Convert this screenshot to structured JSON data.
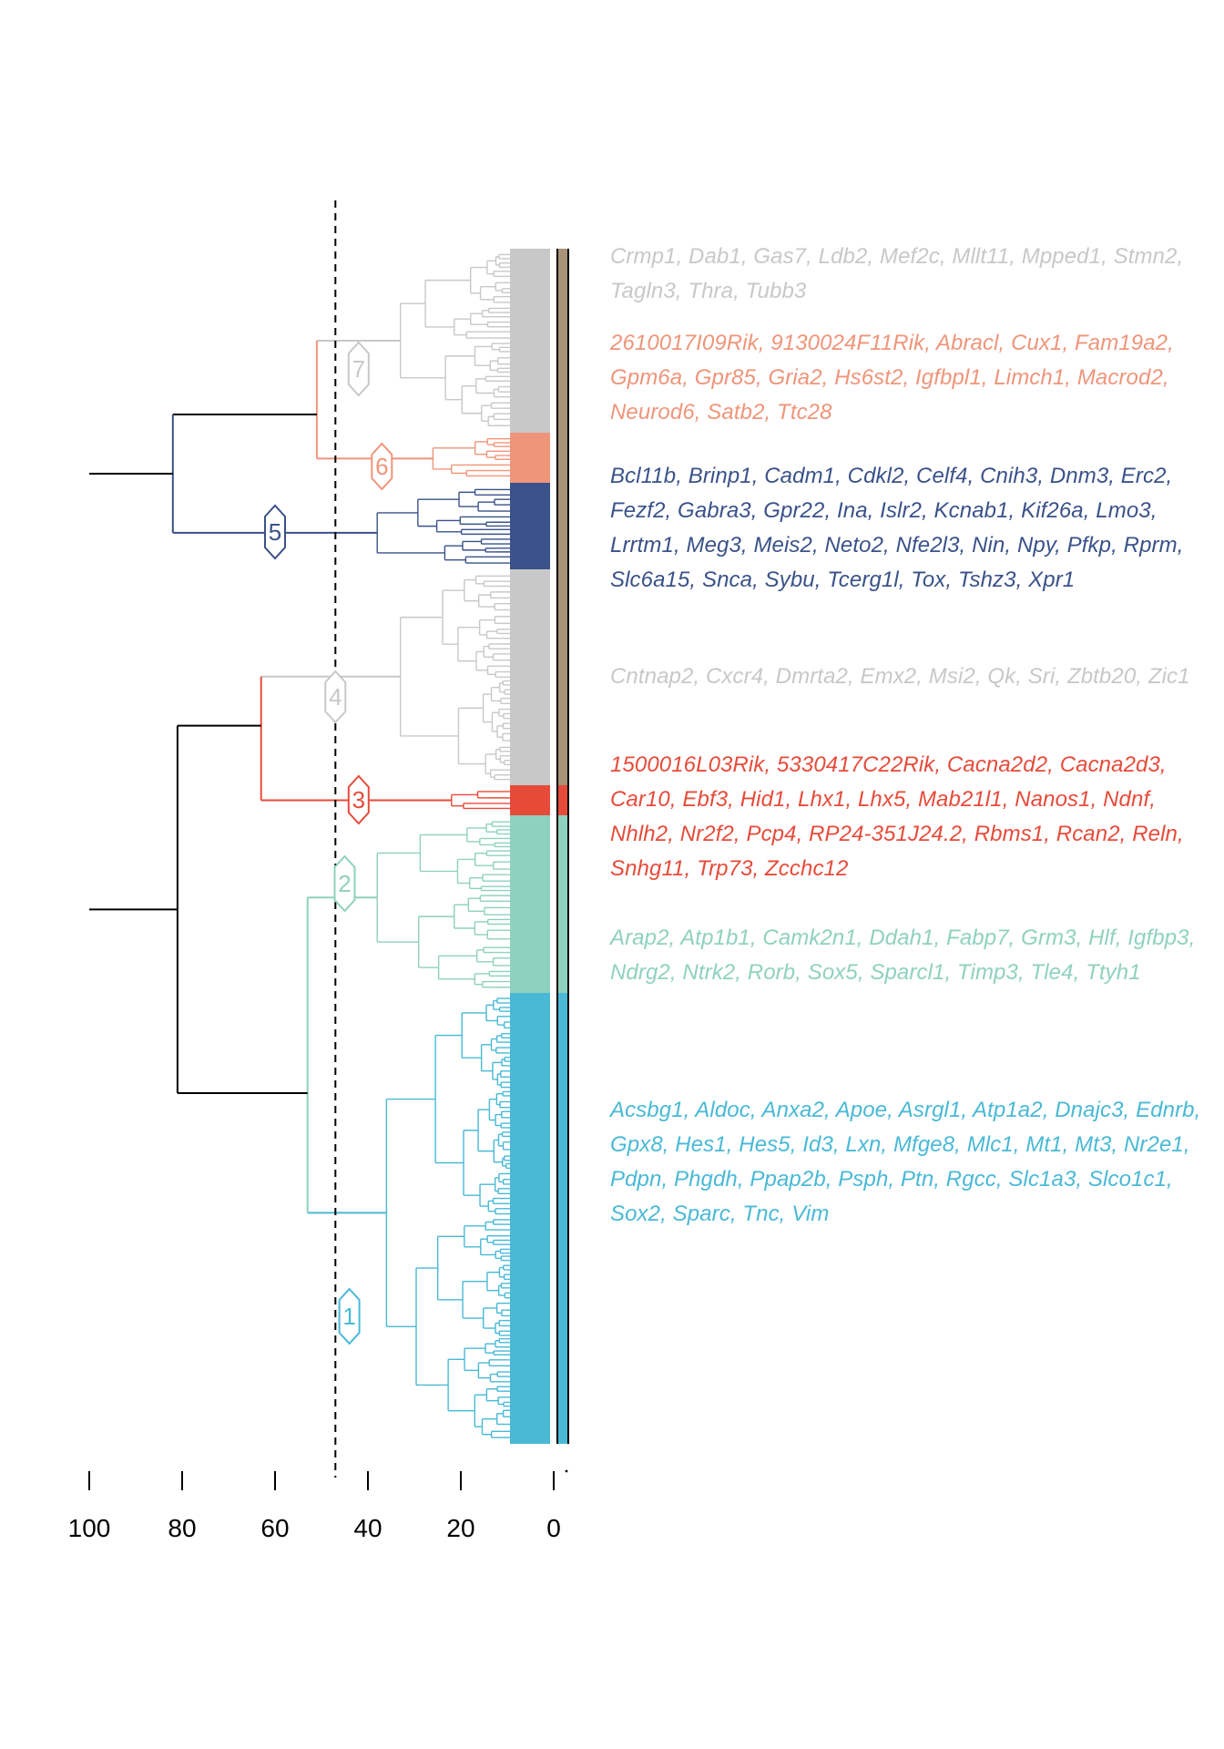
{
  "axis": {
    "ticks": [
      100,
      80,
      60,
      40,
      20,
      0
    ],
    "range": [
      100,
      0
    ],
    "cut_height": 47
  },
  "colors": {
    "black": "#000000",
    "gray": "#c8c8c8",
    "tan": "#a89278",
    "salmon": "#ef957a",
    "navy": "#3a5289",
    "red": "#e64b3a",
    "mint": "#8fd1bf",
    "teal": "#49b9d6"
  },
  "chart_data": {
    "type": "dendrogram",
    "x_axis_ticks": [
      100,
      80,
      60,
      40,
      20,
      0
    ],
    "cut_height": 47,
    "clusters": [
      {
        "id": "7",
        "label": "7",
        "color": "#c8c8c8",
        "height_at_label": 42,
        "genes": "Crmp1, Dab1, Gas7, Ldb2, Mef2c, Mllt11, Mpped1, Stmn2, Tagln3, Thra, Tubb3"
      },
      {
        "id": "6",
        "label": "6",
        "color": "#ef957a",
        "height_at_label": 37,
        "genes": "2610017I09Rik, 9130024F11Rik, Abracl, Cux1, Fam19a2, Gpm6a, Gpr85, Gria2, Hs6st2, Igfbpl1, Limch1, Macrod2, Neurod6, Satb2, Ttc28"
      },
      {
        "id": "5",
        "label": "5",
        "color": "#3a5289",
        "height_at_label": 60,
        "genes": "Bcl11b, Brinp1, Cadm1, Cdkl2, Celf4, Cnih3, Dnm3, Erc2, Fezf2, Gabra3, Gpr22, Ina, Islr2, Kcnab1, Kif26a, Lmo3, Lrrtm1, Meg3, Meis2, Neto2, Nfe2l3, Nin, Npy, Pfkp, Rprm, Slc6a15, Snca, Sybu, Tcerg1l, Tox, Tshz3, Xpr1"
      },
      {
        "id": "4",
        "label": "4",
        "color": "#c8c8c8",
        "height_at_label": 47,
        "genes": "Cntnap2, Cxcr4, Dmrta2, Emx2, Msi2, Qk, Sri, Zbtb20, Zic1"
      },
      {
        "id": "3",
        "label": "3",
        "color": "#e64b3a",
        "height_at_label": 42,
        "genes": "1500016L03Rik, 5330417C22Rik, Cacna2d2, Cacna2d3, Car10, Ebf3, Hid1, Lhx1, Lhx5, Mab21l1, Nanos1, Ndnf, Nhlh2, Nr2f2, Pcp4, RP24-351J24.2, Rbms1, Rcan2, Reln, Snhg11, Trp73, Zcchc12"
      },
      {
        "id": "2",
        "label": "2",
        "color": "#8fd1bf",
        "height_at_label": 45,
        "genes": "Arap2, Atp1b1, Camk2n1, Ddah1, Fabp7, Grm3, Hlf, Igfbp3, Ndrg2, Ntrk2, Rorb, Sox5, Sparcl1, Timp3, Tle4, Ttyh1"
      },
      {
        "id": "1",
        "label": "1",
        "color": "#49b9d6",
        "height_at_label": 44,
        "genes": "Acsbg1, Aldoc, Anxa2, Apoe, Asrgl1, Atp1a2, Dnajc3, Ednrb, Gpx8, Hes1, Hes5, Id3, Lxn, Mfge8, Mlc1, Mt1, Mt3, Nr2e1, Pdpn, Phgdh, Ppap2b, Psph, Ptn, Rgcc, Slc1a3, Slco1c1, Sox2, Sparc, Tnc, Vim"
      }
    ],
    "merges": [
      {
        "clusters": [
          "7",
          "6"
        ],
        "height": 51
      },
      {
        "clusters": [
          "7+6",
          "5"
        ],
        "height": 82
      },
      {
        "clusters": [
          "2",
          "1"
        ],
        "height": 53
      },
      {
        "clusters": [
          "4",
          "3"
        ],
        "height": 63
      },
      {
        "clusters": [
          "4+3",
          "2+1"
        ],
        "height": 81
      },
      {
        "clusters": [
          "top",
          "bottom"
        ],
        "height": 100
      }
    ]
  }
}
